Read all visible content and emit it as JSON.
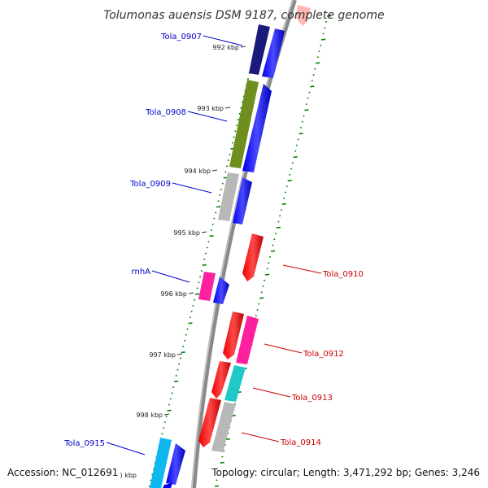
{
  "title": "Tolumonas auensis DSM 9187, complete genome",
  "footer": {
    "accession": "Accession: NC_012691",
    "topology": "Topology: circular; Length: 3,471,292 bp; Genes: 3,246"
  },
  "ticks": [
    {
      "label": "992 kbp",
      "kbp": 992
    },
    {
      "label": "993 kbp",
      "kbp": 993
    },
    {
      "label": "994 kbp",
      "kbp": 994
    },
    {
      "label": "995 kbp",
      "kbp": 995
    },
    {
      "label": "996 kbp",
      "kbp": 996
    },
    {
      "label": "997 kbp",
      "kbp": 997
    },
    {
      "label": "998 kbp",
      "kbp": 998
    }
  ],
  "partial_label": ") kbp",
  "label_colors": {
    "forward": "#0000cc",
    "reverse": "#cc0000"
  },
  "genes": [
    {
      "name": "Tola_0907",
      "strand": "forward",
      "labeled": true
    },
    {
      "name": "Tola_0908",
      "strand": "forward",
      "labeled": true
    },
    {
      "name": "Tola_0909",
      "strand": "forward",
      "labeled": true
    },
    {
      "name": "rnhA",
      "strand": "forward",
      "labeled": true
    },
    {
      "name": "Tola_0910",
      "strand": "reverse",
      "labeled": true
    },
    {
      "name": "Tola_0912",
      "strand": "reverse",
      "labeled": true
    },
    {
      "name": "Tola_0913",
      "strand": "reverse",
      "labeled": true
    },
    {
      "name": "Tola_0914",
      "strand": "reverse",
      "labeled": true
    },
    {
      "name": "Tola_0915",
      "strand": "forward",
      "labeled": true
    }
  ],
  "feature_colors": {
    "cds_forward": "#0000ee",
    "cds_reverse": "#ee0000",
    "dark_blue": "#202080",
    "olive": "#6b8e23",
    "grey": "#b0b0b0",
    "magenta": "#ff1493",
    "cyan": "#20c0c0",
    "sky": "#00b0f0",
    "pink": "#ffb0b0",
    "backbone": "#888888",
    "gc_ticks": "#008000"
  }
}
